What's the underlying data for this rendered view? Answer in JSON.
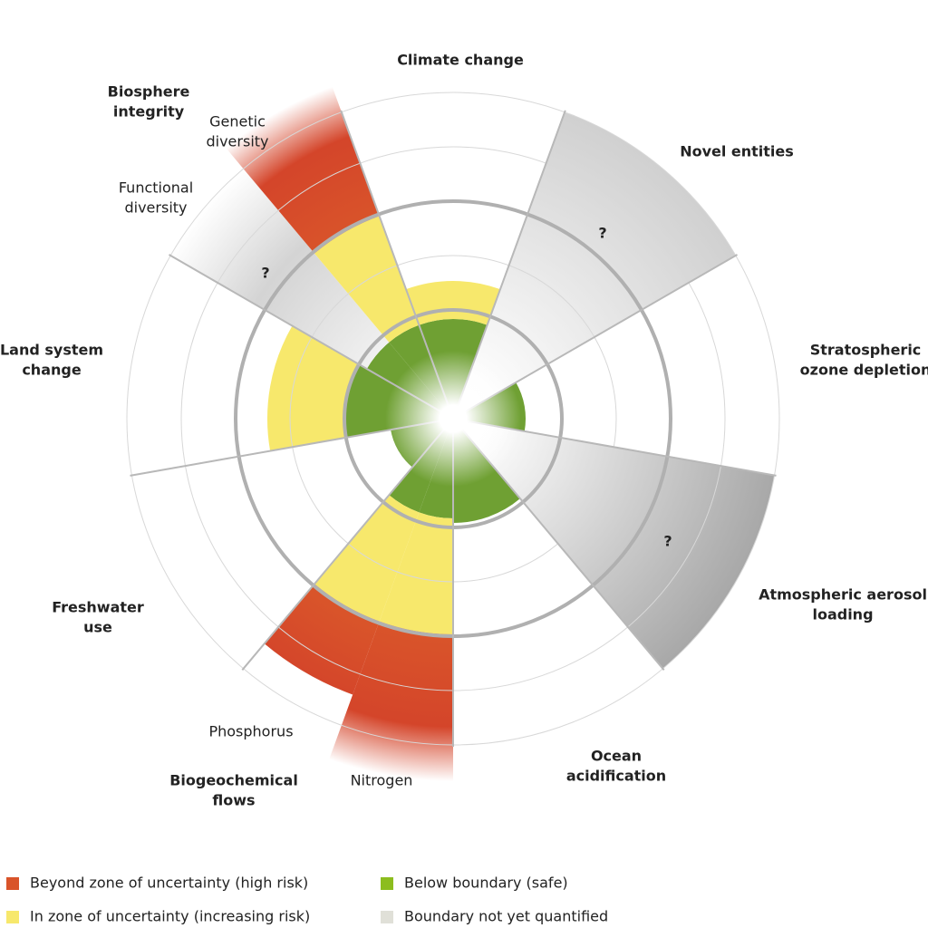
{
  "labels": [
    {
      "lines": [
        "Climate change"
      ]
    },
    {
      "lines": [
        "Novel entities"
      ]
    },
    {
      "lines": [
        "Stratospheric",
        "ozone depletion"
      ]
    },
    {
      "lines": [
        "Atmospheric aerosol",
        "loading"
      ]
    },
    {
      "lines": [
        "Ocean",
        "acidification"
      ]
    },
    {
      "lines": [
        "Biogeochemical",
        "flows"
      ]
    },
    {
      "lines": [
        "Freshwater",
        "use"
      ]
    },
    {
      "lines": [
        "Land system",
        "change"
      ]
    },
    {
      "lines": [
        "Biosphere",
        "integrity"
      ]
    }
  ],
  "sub_labels": [
    {
      "lines": [
        "Genetic",
        "diversity"
      ]
    },
    {
      "lines": [
        "Functional",
        "diversity"
      ]
    },
    {
      "lines": [
        "Phosphorus"
      ]
    },
    {
      "lines": [
        "Nitrogen"
      ]
    }
  ],
  "question_marks": [
    "?",
    "?",
    "?"
  ],
  "legend": [
    {
      "label": "Beyond zone of uncertainty (high risk)",
      "color": "#d9542a"
    },
    {
      "label": "Below boundary (safe)",
      "color": "#8cbd1e"
    },
    {
      "label": "In zone of uncertainty (increasing risk)",
      "color": "#f7e86c"
    },
    {
      "label": "Boundary not yet quantified",
      "color": "#e0e0d8"
    }
  ]
}
